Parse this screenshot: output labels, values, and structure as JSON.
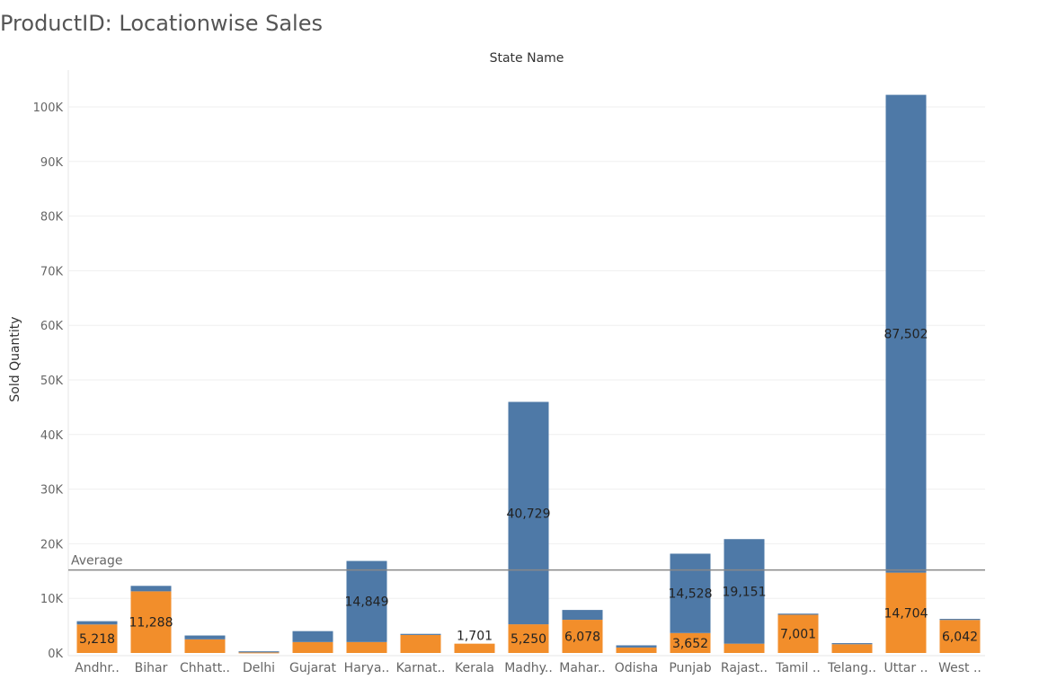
{
  "chart_data": {
    "type": "bar",
    "stacked": true,
    "title": "ProductID: Locationwise Sales",
    "column_header": "State Name",
    "xlabel": "",
    "ylabel": "Sold Quantity",
    "ylim": [
      0,
      105000
    ],
    "yticks": [
      0,
      10000,
      20000,
      30000,
      40000,
      50000,
      60000,
      70000,
      80000,
      90000,
      100000
    ],
    "ytick_labels": [
      "0K",
      "10K",
      "20K",
      "30K",
      "40K",
      "50K",
      "60K",
      "70K",
      "80K",
      "90K",
      "100K"
    ],
    "grid": true,
    "categories": [
      "Andhr..",
      "Bihar",
      "Chhatt..",
      "Delhi",
      "Gujarat",
      "Harya..",
      "Karnat..",
      "Kerala",
      "Madhy..",
      "Mahar..",
      "Odisha",
      "Punjab",
      "Rajast..",
      "Tamil ..",
      "Telang..",
      "Uttar ..",
      "West .."
    ],
    "series": [
      {
        "color": "#f28e2b",
        "values": [
          5218,
          11288,
          2500,
          100,
          2000,
          2000,
          3300,
          1701,
          5250,
          6078,
          1000,
          3652,
          1700,
          7001,
          1600,
          14704,
          6042
        ],
        "labels": [
          "5,218",
          "11,288",
          "",
          "",
          "",
          "",
          "",
          "1,701",
          "5,250",
          "6,078",
          "",
          "3,652",
          "",
          "7,001",
          "",
          "14,704",
          "6,042"
        ]
      },
      {
        "color": "#4e79a7",
        "values": [
          600,
          1000,
          700,
          200,
          2000,
          14849,
          200,
          0,
          40729,
          1800,
          400,
          14528,
          19151,
          200,
          200,
          87502,
          200
        ],
        "labels": [
          "",
          "",
          "",
          "",
          "",
          "14,849",
          "",
          "",
          "40,729",
          "",
          "",
          "14,528",
          "19,151",
          "",
          "",
          "87,502",
          ""
        ]
      }
    ],
    "reference_line": {
      "label": "Average",
      "value": 15200,
      "color": "#888888"
    }
  }
}
